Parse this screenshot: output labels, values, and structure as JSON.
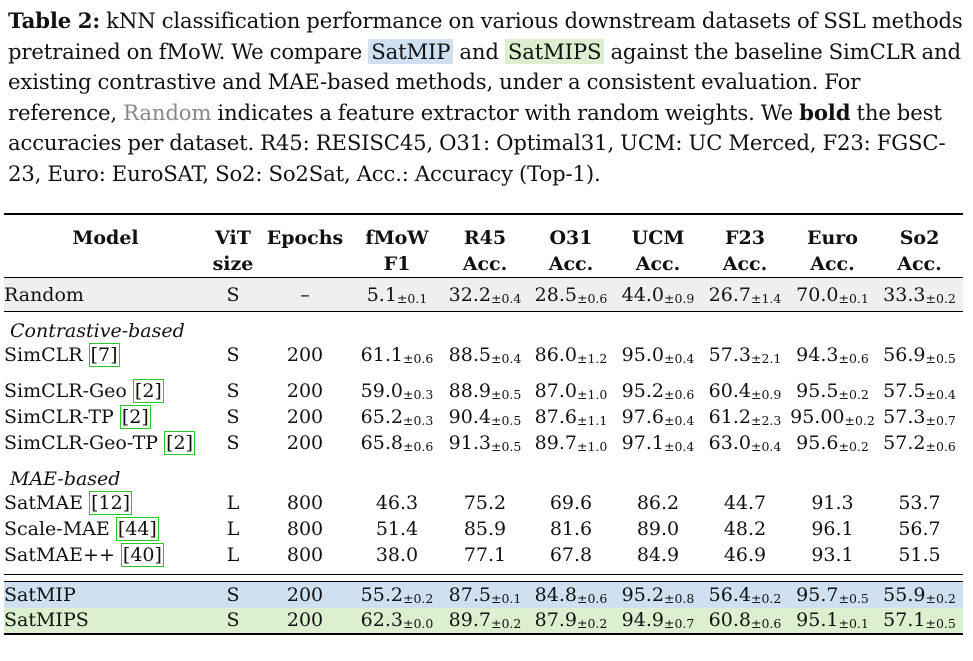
{
  "caption": {
    "label": "Table 2:",
    "part1": "kNN classification performance on various downstream datasets of SSL methods pretrained on fMoW. We compare",
    "satmip": "SatMIP",
    "and": "and",
    "satmips": "SatMIPS",
    "part2": "against the baseline SimCLR and existing contrastive and MAE-based methods, under a consistent evaluation. For reference,",
    "random": "Random",
    "part3": "indicates a feature extractor with random weights. We",
    "bold_word": "bold",
    "part4": "the best accuracies per dataset. R45: RESISC45, O31: Optimal31, UCM: UC Merced, F23: FGSC-23, Euro: EuroSAT, So2: So2Sat, Acc.: Accuracy (Top-1)."
  },
  "header": {
    "model": "Model",
    "vit_1": "ViT",
    "vit_2": "size",
    "epochs": "Epochs",
    "cols": [
      {
        "l1": "fMoW",
        "l2": "F1"
      },
      {
        "l1": "R45",
        "l2": "Acc."
      },
      {
        "l1": "O31",
        "l2": "Acc."
      },
      {
        "l1": "UCM",
        "l2": "Acc."
      },
      {
        "l1": "F23",
        "l2": "Acc."
      },
      {
        "l1": "Euro",
        "l2": "Acc."
      },
      {
        "l1": "So2",
        "l2": "Acc."
      }
    ]
  },
  "groups": {
    "contrastive": "Contrastive-based",
    "mae": "MAE-based"
  },
  "rows": {
    "random": {
      "name": "Random",
      "size": "S",
      "epochs": "–",
      "v": [
        [
          "5.1",
          "±0.1"
        ],
        [
          "32.2",
          "±0.4"
        ],
        [
          "28.5",
          "±0.6"
        ],
        [
          "44.0",
          "±0.9"
        ],
        [
          "26.7",
          "±1.4"
        ],
        [
          "70.0",
          "±0.1"
        ],
        [
          "33.3",
          "±0.2"
        ]
      ]
    },
    "simclr": {
      "name": "SimCLR",
      "cite": "[7]",
      "size": "S",
      "epochs": "200",
      "v": [
        [
          "61.1",
          "±0.6"
        ],
        [
          "88.5",
          "±0.4"
        ],
        [
          "86.0",
          "±1.2"
        ],
        [
          "95.0",
          "±0.4"
        ],
        [
          "57.3",
          "±2.1"
        ],
        [
          "94.3",
          "±0.6"
        ],
        [
          "56.9",
          "±0.5"
        ]
      ]
    },
    "simclr_geo": {
      "name": "SimCLR-Geo",
      "cite": "[2]",
      "size": "S",
      "epochs": "200",
      "v": [
        [
          "59.0",
          "±0.3"
        ],
        [
          "88.9",
          "±0.5"
        ],
        [
          "87.0",
          "±1.0"
        ],
        [
          "95.2",
          "±0.6"
        ],
        [
          "60.4",
          "±0.9"
        ],
        [
          "95.5",
          "±0.2"
        ],
        [
          "57.5",
          "±0.4"
        ]
      ]
    },
    "simclr_tp": {
      "name": "SimCLR-TP",
      "cite": "[2]",
      "size": "S",
      "epochs": "200",
      "v": [
        [
          "65.2",
          "±0.3"
        ],
        [
          "90.4",
          "±0.5"
        ],
        [
          "87.6",
          "±1.1"
        ],
        [
          "97.6",
          "±0.4"
        ],
        [
          "61.2",
          "±2.3"
        ],
        [
          "95.00",
          "±0.2"
        ],
        [
          "57.3",
          "±0.7"
        ]
      ]
    },
    "simclr_geo_tp": {
      "name": "SimCLR-Geo-TP",
      "cite": "[2]",
      "size": "S",
      "epochs": "200",
      "v": [
        [
          "65.8",
          "±0.6"
        ],
        [
          "91.3",
          "±0.5"
        ],
        [
          "89.7",
          "±1.0"
        ],
        [
          "97.1",
          "±0.4"
        ],
        [
          "63.0",
          "±0.4"
        ],
        [
          "95.6",
          "±0.2"
        ],
        [
          "57.2",
          "±0.6"
        ]
      ]
    },
    "satmae": {
      "name": "SatMAE",
      "cite": "[12]",
      "size": "L",
      "epochs": "800",
      "v": [
        "46.3",
        "75.2",
        "69.6",
        "86.2",
        "44.7",
        "91.3",
        "53.7"
      ]
    },
    "scale_mae": {
      "name": "Scale-MAE",
      "cite": "[44]",
      "size": "L",
      "epochs": "800",
      "v": [
        "51.4",
        "85.9",
        "81.6",
        "89.0",
        "48.2",
        "96.1",
        "56.7"
      ]
    },
    "satmae_pp": {
      "name": "SatMAE++",
      "cite": "[40]",
      "size": "L",
      "epochs": "800",
      "v": [
        "38.0",
        "77.1",
        "67.8",
        "84.9",
        "46.9",
        "93.1",
        "51.5"
      ]
    },
    "satmip": {
      "name": "SatMIP",
      "size": "S",
      "epochs": "200",
      "v": [
        [
          "55.2",
          "±0.2"
        ],
        [
          "87.5",
          "±0.1"
        ],
        [
          "84.8",
          "±0.6"
        ],
        [
          "95.2",
          "±0.8"
        ],
        [
          "56.4",
          "±0.2"
        ],
        [
          "95.7",
          "±0.5"
        ],
        [
          "55.9",
          "±0.2"
        ]
      ]
    },
    "satmips": {
      "name": "SatMIPS",
      "size": "S",
      "epochs": "200",
      "v": [
        [
          "62.3",
          "±0.0"
        ],
        [
          "89.7",
          "±0.2"
        ],
        [
          "87.9",
          "±0.2"
        ],
        [
          "94.9",
          "±0.7"
        ],
        [
          "60.8",
          "±0.6"
        ],
        [
          "95.1",
          "±0.1"
        ],
        [
          "57.1",
          "±0.5"
        ]
      ]
    }
  }
}
